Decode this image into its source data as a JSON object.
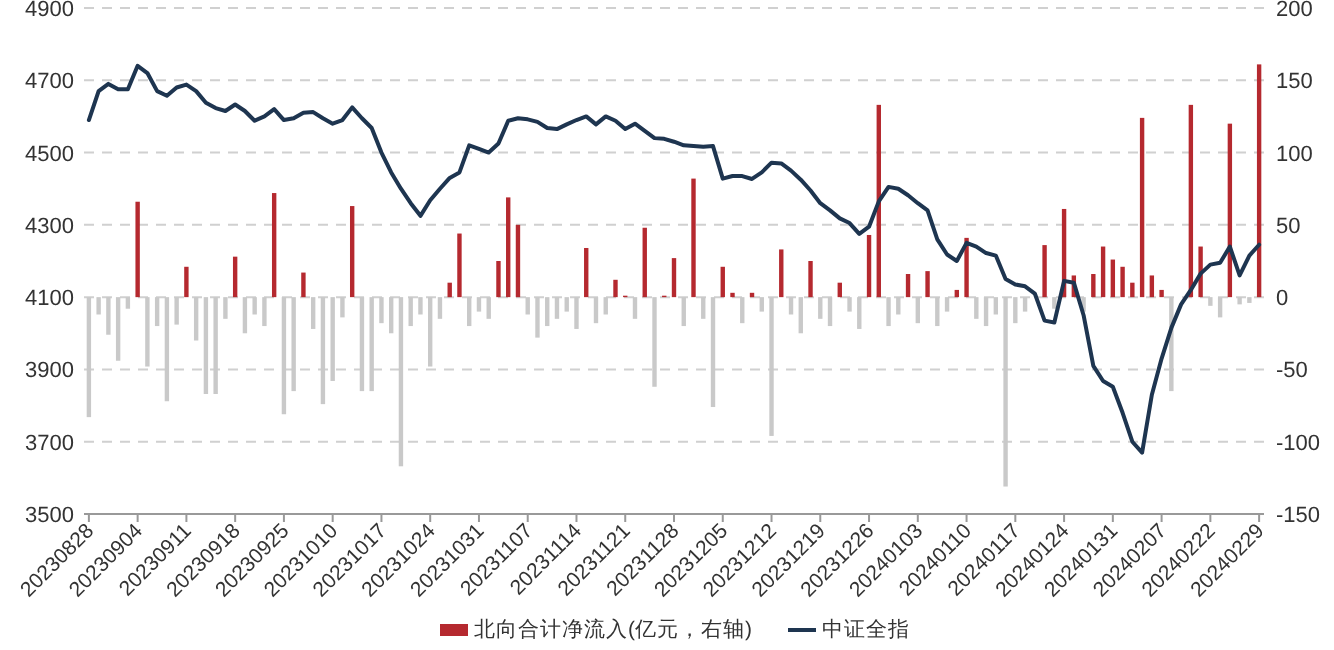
{
  "chart_data": {
    "type": "bar",
    "categories": [
      "20230828",
      null,
      null,
      null,
      null,
      "20230904",
      null,
      null,
      null,
      null,
      "20230911",
      null,
      null,
      null,
      null,
      "20230918",
      null,
      null,
      null,
      null,
      "20230925",
      null,
      null,
      null,
      null,
      "20231010",
      null,
      null,
      null,
      null,
      "20231017",
      null,
      null,
      null,
      null,
      "20231024",
      null,
      null,
      null,
      null,
      "20231031",
      null,
      null,
      null,
      null,
      "20231107",
      null,
      null,
      null,
      null,
      "20231114",
      null,
      null,
      null,
      null,
      "20231121",
      null,
      null,
      null,
      null,
      "20231128",
      null,
      null,
      null,
      null,
      "20231205",
      null,
      null,
      null,
      null,
      "20231212",
      null,
      null,
      null,
      null,
      "20231219",
      null,
      null,
      null,
      null,
      "20231226",
      null,
      null,
      null,
      null,
      "20240103",
      null,
      null,
      null,
      null,
      "20240110",
      null,
      null,
      null,
      null,
      "20240117",
      null,
      null,
      null,
      null,
      "20240124",
      null,
      null,
      null,
      null,
      "20240131",
      null,
      null,
      null,
      null,
      "20240207",
      null,
      null,
      null,
      null,
      "20240222",
      null,
      null,
      null,
      null,
      "20240229"
    ],
    "series": [
      {
        "name": "北向合计净流入(亿元，右轴)",
        "axis": "y2",
        "color": "#b5292f",
        "values": [
          -83,
          -12,
          -26,
          -44,
          -8,
          66,
          -48,
          -20,
          -72,
          -19,
          21,
          -30,
          -67,
          -67,
          -15,
          28,
          -25,
          -12,
          -20,
          72,
          -81,
          -65,
          17,
          -22,
          -74,
          -58,
          -14,
          63,
          -65,
          -65,
          -18,
          -25,
          -117,
          -20,
          -12,
          -48,
          -15,
          10,
          44,
          -20,
          -10,
          -15,
          25,
          69,
          50,
          -12,
          -28,
          -20,
          -15,
          -10,
          -22,
          34,
          -18,
          -12,
          12,
          1,
          -15,
          48,
          -62,
          1,
          27,
          -20,
          82,
          -15,
          -76,
          21,
          3,
          -18,
          3,
          -10,
          -96,
          33,
          -12,
          -25,
          25,
          -15,
          -20,
          10,
          -10,
          -22,
          43,
          133,
          -20,
          -12,
          16,
          -18,
          18,
          -20,
          -10,
          5,
          41,
          -15,
          -20,
          -12,
          -131,
          -18,
          -10,
          null,
          36,
          -8,
          61,
          15,
          -10,
          16,
          35,
          26,
          21,
          10,
          124,
          15,
          5,
          -65,
          null,
          133,
          35,
          -6,
          -14,
          120,
          -5,
          -4,
          161
        ],
        "colors": [
          "#c9c9c9",
          "#c9c9c9",
          "#c9c9c9",
          "#c9c9c9",
          "#c9c9c9",
          "#b5292f",
          "#c9c9c9",
          "#c9c9c9",
          "#c9c9c9",
          "#c9c9c9",
          "#b5292f",
          "#c9c9c9",
          "#c9c9c9",
          "#c9c9c9",
          "#c9c9c9",
          "#b5292f",
          "#c9c9c9",
          "#c9c9c9",
          "#c9c9c9",
          "#b5292f",
          "#c9c9c9",
          "#c9c9c9",
          "#b5292f",
          "#c9c9c9",
          "#c9c9c9",
          "#c9c9c9",
          "#c9c9c9",
          "#b5292f",
          "#c9c9c9",
          "#c9c9c9",
          "#c9c9c9",
          "#c9c9c9",
          "#c9c9c9",
          "#c9c9c9",
          "#c9c9c9",
          "#c9c9c9",
          "#c9c9c9",
          "#b5292f",
          "#b5292f",
          "#c9c9c9",
          "#c9c9c9",
          "#c9c9c9",
          "#b5292f",
          "#b5292f",
          "#b5292f",
          "#c9c9c9",
          "#c9c9c9",
          "#c9c9c9",
          "#c9c9c9",
          "#c9c9c9",
          "#c9c9c9",
          "#b5292f",
          "#c9c9c9",
          "#c9c9c9",
          "#b5292f",
          "#b5292f",
          "#c9c9c9",
          "#b5292f",
          "#c9c9c9",
          "#b5292f",
          "#b5292f",
          "#c9c9c9",
          "#b5292f",
          "#c9c9c9",
          "#c9c9c9",
          "#b5292f",
          "#b5292f",
          "#c9c9c9",
          "#b5292f",
          "#c9c9c9",
          "#c9c9c9",
          "#b5292f",
          "#c9c9c9",
          "#c9c9c9",
          "#b5292f",
          "#c9c9c9",
          "#c9c9c9",
          "#b5292f",
          "#c9c9c9",
          "#c9c9c9",
          "#b5292f",
          "#b5292f",
          "#c9c9c9",
          "#c9c9c9",
          "#b5292f",
          "#c9c9c9",
          "#b5292f",
          "#c9c9c9",
          "#c9c9c9",
          "#b5292f",
          "#b5292f",
          "#c9c9c9",
          "#c9c9c9",
          "#c9c9c9",
          "#c9c9c9",
          "#c9c9c9",
          "#c9c9c9",
          null,
          "#b5292f",
          "#c9c9c9",
          "#b5292f",
          "#b5292f",
          "#c9c9c9",
          "#b5292f",
          "#b5292f",
          "#b5292f",
          "#b5292f",
          "#b5292f",
          "#b5292f",
          "#b5292f",
          "#b5292f",
          "#c9c9c9",
          null,
          "#b5292f",
          "#b5292f",
          "#c9c9c9",
          "#c9c9c9",
          "#b5292f",
          "#c9c9c9",
          "#c9c9c9",
          "#b5292f"
        ]
      },
      {
        "name": "中证全指",
        "type": "line",
        "color": "#1e3550",
        "values": [
          4590,
          4670,
          4690,
          4675,
          4675,
          4740,
          4720,
          4670,
          4657,
          4680,
          4688,
          4670,
          4638,
          4623,
          4615,
          4633,
          4615,
          4588,
          4600,
          4620,
          4590,
          4595,
          4610,
          4612,
          4595,
          4580,
          4590,
          4625,
          4595,
          4568,
          4500,
          4445,
          4400,
          4360,
          4325,
          4368,
          4400,
          4430,
          4445,
          4520,
          4510,
          4500,
          4525,
          4588,
          4595,
          4592,
          4585,
          4568,
          4565,
          4578,
          4590,
          4600,
          4578,
          4600,
          4588,
          4565,
          4580,
          4560,
          4540,
          4538,
          4530,
          4520,
          4518,
          4516,
          4518,
          4428,
          4435,
          4435,
          4427,
          4445,
          4472,
          4470,
          4450,
          4425,
          4395,
          4360,
          4340,
          4318,
          4305,
          4275,
          4295,
          4365,
          4405,
          4400,
          4382,
          4360,
          4340,
          4260,
          4218,
          4200,
          4250,
          4240,
          4222,
          4215,
          4150,
          4135,
          4130,
          4110,
          4035,
          4030,
          4145,
          4140,
          4050,
          3910,
          3868,
          3852,
          3780,
          3700,
          3670,
          3830,
          3930,
          4015,
          4080,
          4120,
          4165,
          4190,
          4195,
          4240,
          4160,
          4215,
          4245
        ]
      }
    ],
    "ylim": [
      3500,
      4900
    ],
    "yticks": [
      3500,
      3700,
      3900,
      4100,
      4300,
      4500,
      4700,
      4900
    ],
    "y2lim": [
      -150,
      200
    ],
    "y2ticks": [
      -150,
      -100,
      -50,
      0,
      50,
      100,
      150,
      200
    ],
    "grid": "y",
    "legend": "bottom"
  }
}
